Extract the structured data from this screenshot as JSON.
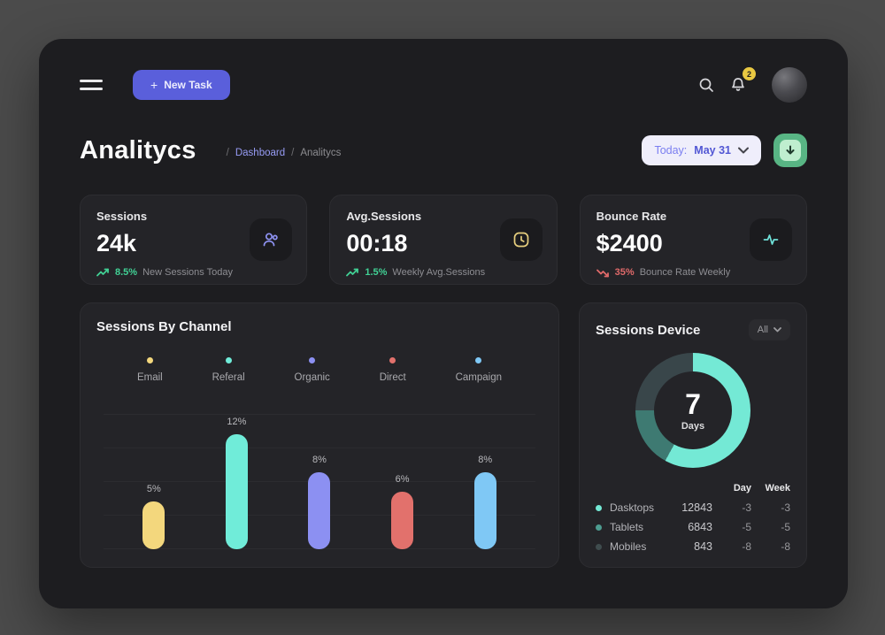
{
  "topbar": {
    "new_task_plus": "+",
    "new_task_label": "New Task",
    "notification_count": "2"
  },
  "header": {
    "title": "Analitycs",
    "breadcrumb": {
      "sep1": "/",
      "dashboard": "Dashboard",
      "sep2": "/",
      "current": "Analitycs"
    },
    "date_filter": {
      "prefix": "Today:",
      "value": "May 31"
    }
  },
  "stats": [
    {
      "label": "Sessions",
      "value": "24k",
      "icon": "users-icon",
      "icon_color": "#8f93f3",
      "trend_dir": "up",
      "trend_pct": "8.5%",
      "trend_color": "#41d195",
      "trend_text": "New Sessions Today"
    },
    {
      "label": "Avg.Sessions",
      "value": "00:18",
      "icon": "clock-icon",
      "icon_color": "#e7cf7e",
      "trend_dir": "up",
      "trend_pct": "1.5%",
      "trend_color": "#41d195",
      "trend_text": "Weekly Avg.Sessions"
    },
    {
      "label": "Bounce Rate",
      "value": "$2400",
      "icon": "activity-icon",
      "icon_color": "#6fe0d8",
      "trend_dir": "down",
      "trend_pct": "35%",
      "trend_color": "#e06a6a",
      "trend_text": "Bounce Rate Weekly"
    }
  ],
  "chart_data": [
    {
      "type": "bar",
      "title": "Sessions By Channel",
      "categories": [
        "Email",
        "Referal",
        "Organic",
        "Direct",
        "Campaign"
      ],
      "values": [
        5,
        12,
        8,
        6,
        8
      ],
      "value_labels": [
        "5%",
        "12%",
        "8%",
        "6%",
        "8%"
      ],
      "colors": [
        "#f3d77d",
        "#70ecd9",
        "#8c90f2",
        "#e2716c",
        "#7fc8f5"
      ],
      "xlabel": "",
      "ylabel": "",
      "ylim": [
        0,
        12
      ],
      "grid": true,
      "legend_position": "top"
    },
    {
      "type": "donut",
      "title": "Sessions Device",
      "center_value": "7",
      "center_label": "Days",
      "segments": [
        {
          "label": "Dasktops",
          "value": 12843,
          "color": "#74e9d5",
          "ring_pct": 58
        },
        {
          "label": "Tablets",
          "value": 6843,
          "color": "#3e7a72",
          "ring_pct": 17
        },
        {
          "label": "Mobiles",
          "value": 843,
          "color": "#39464a",
          "ring_pct": 25
        }
      ]
    }
  ],
  "chart_panel": {
    "title": "Sessions By Channel"
  },
  "device_panel": {
    "title": "Sessions Device",
    "filter_label": "All",
    "table": {
      "col_day": "Day",
      "col_week": "Week",
      "rows": [
        {
          "name": "Dasktops",
          "value": "12843",
          "day": "-3",
          "week": "-3",
          "dot": "#74e9d5"
        },
        {
          "name": "Tablets",
          "value": "6843",
          "day": "-5",
          "week": "-5",
          "dot": "#4d9c90"
        },
        {
          "name": "Mobiles",
          "value": "843",
          "day": "-8",
          "week": "-8",
          "dot": "#3f4c4e"
        }
      ]
    }
  }
}
